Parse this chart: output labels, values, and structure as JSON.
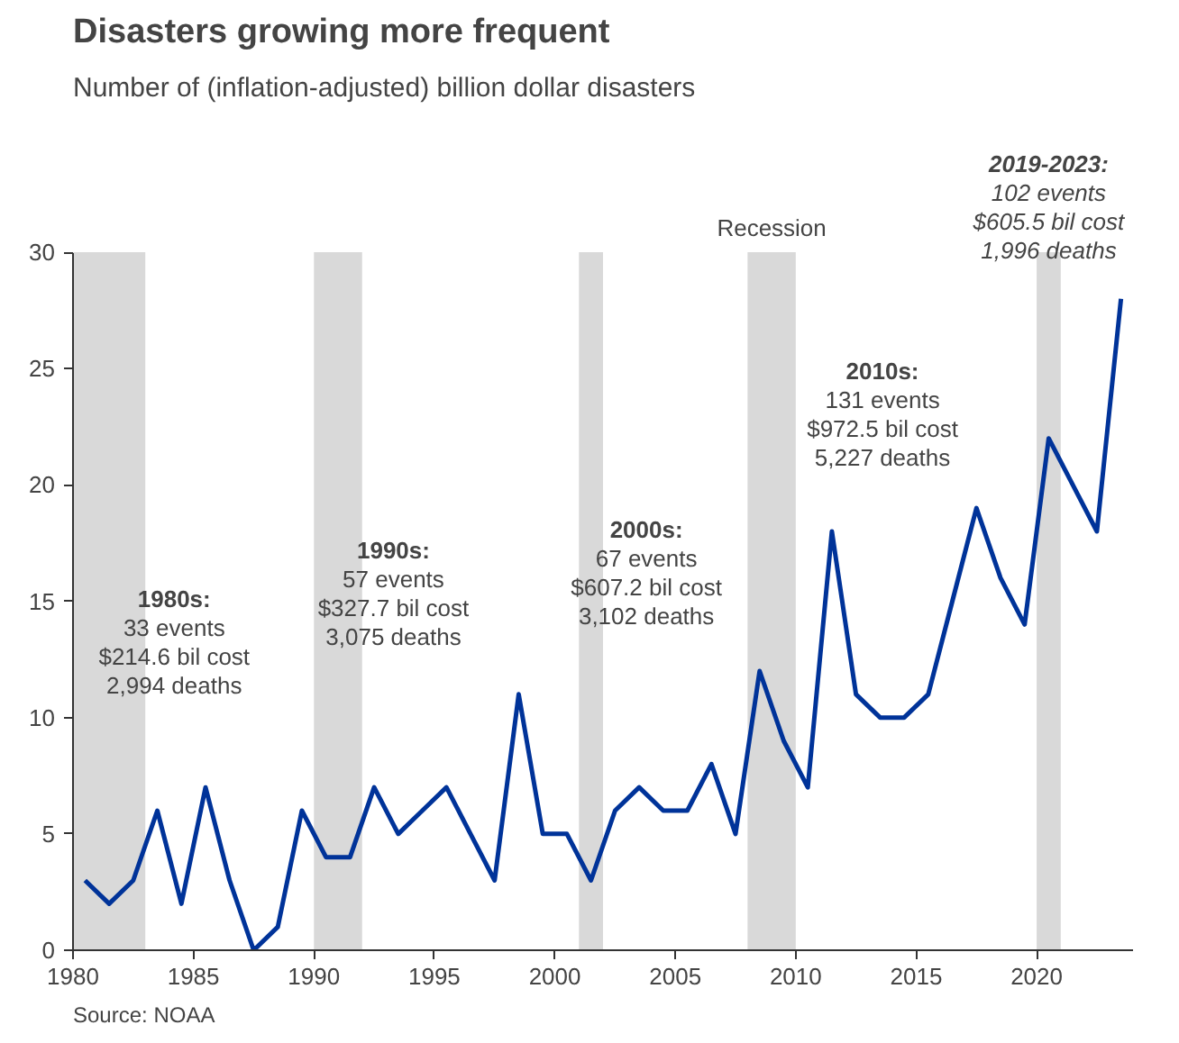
{
  "chart_data": {
    "type": "line",
    "title": "Disasters growing more frequent",
    "subtitle": "Number of (inflation-adjusted) billion dollar disasters",
    "x": [
      1980.5,
      1981.5,
      1982.5,
      1983.5,
      1984.5,
      1985.5,
      1986.5,
      1987.5,
      1988.5,
      1989.5,
      1990.5,
      1991.5,
      1992.5,
      1993.5,
      1994.5,
      1995.5,
      1996.5,
      1997.5,
      1998.5,
      1999.5,
      2000.5,
      2001.5,
      2002.5,
      2003.5,
      2004.5,
      2005.5,
      2006.5,
      2007.5,
      2008.5,
      2009.5,
      2010.5,
      2011.5,
      2012.5,
      2013.5,
      2014.5,
      2015.5,
      2016.5,
      2017.5,
      2018.5,
      2019.5,
      2020.5,
      2021.5,
      2022.5,
      2023.5
    ],
    "series": [
      {
        "color": "#003399",
        "values": [
          3,
          2,
          3,
          6,
          2,
          7,
          3,
          0,
          1,
          6,
          4,
          4,
          7,
          5,
          6,
          7,
          5,
          3,
          11,
          5,
          5,
          3,
          6,
          7,
          6,
          6,
          8,
          5,
          12,
          9,
          7,
          18,
          11,
          10,
          10,
          11,
          15,
          19,
          16,
          14,
          22,
          20,
          18,
          28
        ]
      }
    ],
    "xlim": [
      1980,
      2024
    ],
    "ylim": [
      0,
      30
    ],
    "xticks": [
      1980,
      1985,
      1990,
      1995,
      2000,
      2005,
      2010,
      2015,
      2020
    ],
    "yticks": [
      0,
      5,
      10,
      15,
      20,
      25,
      30
    ],
    "grid": false,
    "marker": "none",
    "line_style": "solid",
    "bands": [
      {
        "axis": "x",
        "from": 1980,
        "to": 1983,
        "label": null,
        "color": "#d9d9d9"
      },
      {
        "axis": "x",
        "from": 1990,
        "to": 1992,
        "label": null,
        "color": "#d9d9d9"
      },
      {
        "axis": "x",
        "from": 2001,
        "to": 2002,
        "label": null,
        "color": "#d9d9d9"
      },
      {
        "axis": "x",
        "from": 2008,
        "to": 2010,
        "label": "Recession",
        "color": "#d9d9d9"
      },
      {
        "axis": "x",
        "from": 2020,
        "to": 2021,
        "label": null,
        "color": "#d9d9d9"
      }
    ],
    "annotations": [
      "1980s:\n33 events\n$214.6 bil cost\n2,994 deaths",
      "1990s:\n57 events\n$327.7 bil cost\n3,075 deaths",
      "2000s:\n67 events\n$607.2 bil cost\n3,102 deaths",
      "2010s:\n131 events\n$972.5 bil cost\n5,227 deaths",
      "2019-2023:\n102 events\n$605.5 bil cost\n1,996 deaths",
      "Source: NOAA"
    ]
  }
}
